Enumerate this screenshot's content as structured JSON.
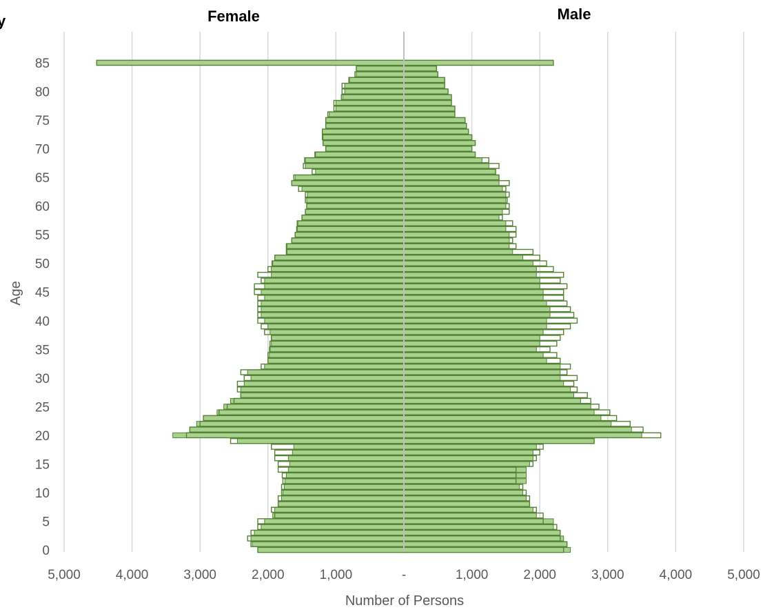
{
  "chart_data": {
    "type": "bar",
    "subtype": "population-pyramid",
    "title_left": "Female",
    "title_right": "Male",
    "clipped_title_fragment": "y",
    "xlabel": "Number of Persons",
    "ylabel": "Age",
    "xlim": [
      -5000,
      5000
    ],
    "x_ticks": [
      -5000,
      -4000,
      -3000,
      -2000,
      -1000,
      0,
      1000,
      2000,
      3000,
      4000,
      5000
    ],
    "x_tick_labels": [
      "5,000",
      "4,000",
      "3,000",
      "2,000",
      "1,000",
      "-",
      "1,000",
      "2,000",
      "3,000",
      "4,000",
      "5,000"
    ],
    "ylim": [
      0,
      85
    ],
    "y_ticks": [
      0,
      5,
      10,
      15,
      20,
      25,
      30,
      35,
      40,
      45,
      50,
      55,
      60,
      65,
      70,
      75,
      80,
      85
    ],
    "grid": "vertical",
    "colors": {
      "series1_fill": "#a9d18e",
      "series1_stroke": "#548235",
      "series2_fill": "#b4c7e7",
      "series2_stroke": "#548235",
      "grid": "#d9d9d9",
      "tick_text": "#595959"
    },
    "series": [
      {
        "role": "filled-bars",
        "female": [
          2150,
          2230,
          2250,
          2200,
          2100,
          2050,
          1930,
          1900,
          1850,
          1800,
          1780,
          1760,
          1750,
          1730,
          1700,
          1680,
          1700,
          1640,
          1620,
          2450,
          3400,
          3150,
          3050,
          2950,
          2750,
          2650,
          2550,
          2400,
          2400,
          2350,
          2250,
          2300,
          2050,
          2000,
          1980,
          1980,
          1950,
          1950,
          1970,
          2000,
          2050,
          2100,
          2100,
          2100,
          2050,
          2100,
          2050,
          2050,
          1950,
          1950,
          1930,
          1900,
          1720,
          1720,
          1650,
          1600,
          1580,
          1560,
          1500,
          1450,
          1430,
          1430,
          1420,
          1500,
          1650,
          1600,
          1300,
          1450,
          1450,
          1300,
          1150,
          1190,
          1190,
          1200,
          1150,
          1150,
          1100,
          1000,
          1000,
          900,
          870,
          870,
          800,
          700,
          700,
          4520
        ],
        "male": [
          2450,
          2400,
          2350,
          2300,
          2200,
          2200,
          1950,
          1900,
          1850,
          1800,
          1750,
          1700,
          1800,
          1800,
          1800,
          1850,
          1900,
          1900,
          1950,
          2800,
          3500,
          3350,
          3050,
          2900,
          2800,
          2750,
          2600,
          2500,
          2450,
          2350,
          2300,
          2300,
          2300,
          2100,
          2050,
          1950,
          2000,
          2000,
          2050,
          2100,
          2100,
          2150,
          2150,
          2100,
          2050,
          2050,
          2000,
          2000,
          1950,
          1950,
          1900,
          1750,
          1600,
          1550,
          1550,
          1550,
          1500,
          1500,
          1400,
          1450,
          1500,
          1500,
          1500,
          1450,
          1400,
          1400,
          1350,
          1250,
          1150,
          1050,
          1000,
          1050,
          1000,
          950,
          920,
          900,
          750,
          750,
          700,
          700,
          650,
          600,
          600,
          500,
          480,
          2200
        ]
      },
      {
        "role": "outlined-bars",
        "female": [
          2150,
          2250,
          2300,
          2250,
          2150,
          2150,
          1900,
          1950,
          1850,
          1850,
          1800,
          1800,
          1780,
          1790,
          1850,
          1850,
          1900,
          1900,
          1950,
          2550,
          3200,
          3150,
          3000,
          2950,
          2720,
          2600,
          2500,
          2400,
          2450,
          2450,
          2350,
          2400,
          2100,
          2000,
          2000,
          1970,
          1970,
          1950,
          2050,
          2100,
          2150,
          2150,
          2150,
          2150,
          2150,
          2200,
          2200,
          2100,
          2150,
          2000,
          1940,
          1900,
          1730,
          1730,
          1650,
          1600,
          1570,
          1570,
          1500,
          1450,
          1430,
          1450,
          1450,
          1550,
          1650,
          1620,
          1350,
          1480,
          1460,
          1310,
          1150,
          1190,
          1200,
          1200,
          1150,
          1150,
          1120,
          1030,
          1030,
          920,
          910,
          910,
          810,
          720,
          700,
          4520
        ],
        "male": [
          2350,
          2400,
          2300,
          2300,
          2250,
          2050,
          2050,
          1950,
          1850,
          1850,
          1800,
          1750,
          1650,
          1650,
          1650,
          1900,
          1950,
          2000,
          2050,
          2800,
          3780,
          3520,
          3330,
          3130,
          3030,
          2870,
          2750,
          2700,
          2550,
          2500,
          2550,
          2400,
          2450,
          2300,
          2250,
          2150,
          2250,
          2300,
          2350,
          2450,
          2550,
          2500,
          2450,
          2400,
          2350,
          2350,
          2400,
          2300,
          2350,
          2200,
          2100,
          2000,
          1900,
          1650,
          1600,
          1650,
          1650,
          1600,
          1450,
          1550,
          1550,
          1520,
          1550,
          1500,
          1550,
          1400,
          1350,
          1400,
          1250,
          1050,
          1000,
          1050,
          1000,
          950,
          920,
          900,
          750,
          750,
          700,
          700,
          650,
          600,
          600,
          500,
          480,
          2200
        ]
      }
    ]
  }
}
